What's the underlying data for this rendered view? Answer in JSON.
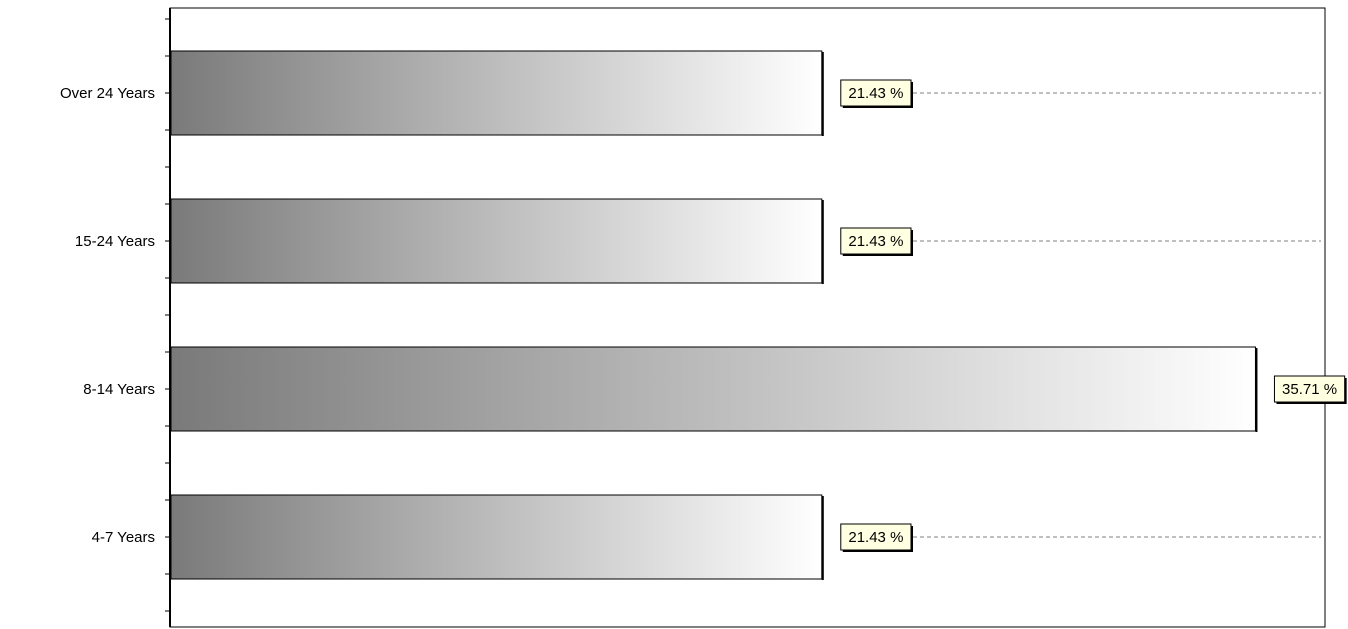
{
  "chart_data": {
    "type": "bar",
    "orientation": "horizontal",
    "categories": [
      "Over 24 Years",
      "15-24 Years",
      "8-14 Years",
      "4-7 Years"
    ],
    "values": [
      21.43,
      21.43,
      35.71,
      21.43
    ],
    "value_labels": [
      "21.43 %",
      "21.43 %",
      "35.71 %",
      "21.43 %"
    ],
    "title": "",
    "xlabel": "",
    "ylabel": "",
    "xlim": [
      0,
      38
    ],
    "grid": false,
    "legend": "none",
    "colors": {
      "bar_start": "#7a7a7a",
      "bar_end": "#ffffff",
      "label_background": "#ffffe1",
      "leader_line": "#808080"
    }
  }
}
